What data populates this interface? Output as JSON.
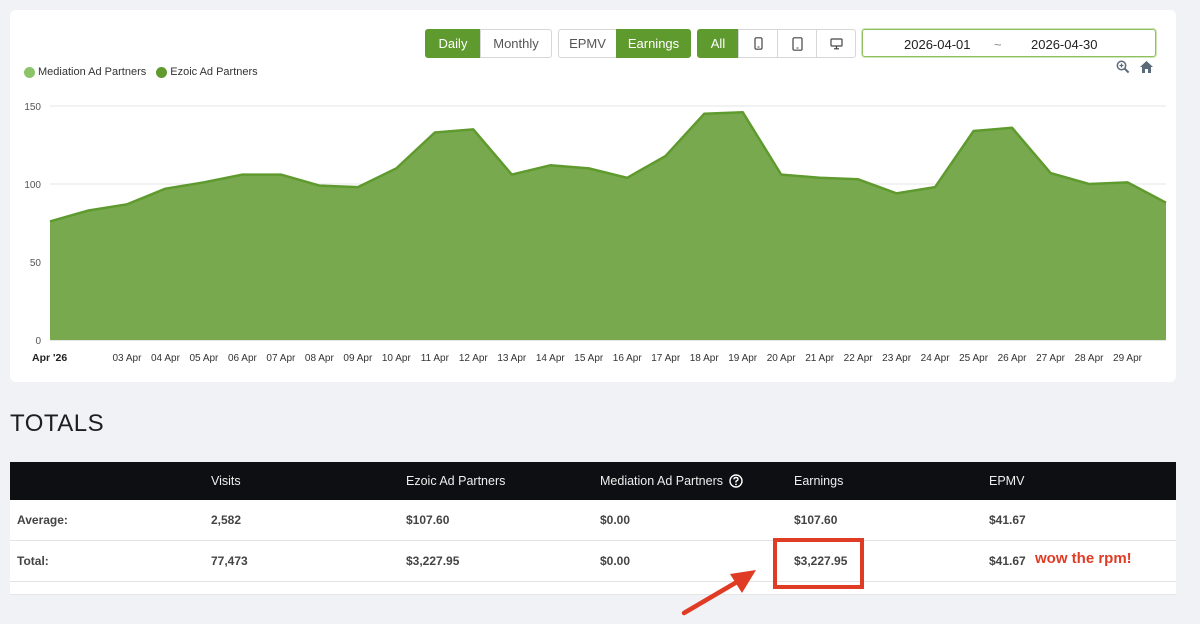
{
  "toolbar": {
    "period": [
      "Daily",
      "Monthly"
    ],
    "period_active": "Daily",
    "metric": [
      "EPMV",
      "Earnings"
    ],
    "metric_active": "Earnings",
    "device_all_label": "All",
    "device_icons": [
      "phone-icon",
      "tablet-icon",
      "desktop-icon"
    ],
    "date_start": "2026-04-01",
    "date_separator": "~",
    "date_end": "2026-04-30",
    "zoom_icon": "zoom-in-icon",
    "home_icon": "home-icon"
  },
  "legend": [
    {
      "name": "Mediation Ad Partners",
      "color": "#8cc46a"
    },
    {
      "name": "Ezoic Ad Partners",
      "color": "#5f9a2f"
    }
  ],
  "chart_data": {
    "type": "area",
    "x": [
      "2026-04-01",
      "2026-04-02",
      "2026-04-03",
      "2026-04-04",
      "2026-04-05",
      "2026-04-06",
      "2026-04-07",
      "2026-04-08",
      "2026-04-09",
      "2026-04-10",
      "2026-04-11",
      "2026-04-12",
      "2026-04-13",
      "2026-04-14",
      "2026-04-15",
      "2026-04-16",
      "2026-04-17",
      "2026-04-18",
      "2026-04-19",
      "2026-04-20",
      "2026-04-21",
      "2026-04-22",
      "2026-04-23",
      "2026-04-24",
      "2026-04-25",
      "2026-04-26",
      "2026-04-27",
      "2026-04-28",
      "2026-04-29",
      "2026-04-30"
    ],
    "x_tick_labels": [
      "Apr '26",
      "",
      "03 Apr",
      "04 Apr",
      "05 Apr",
      "06 Apr",
      "07 Apr",
      "08 Apr",
      "09 Apr",
      "10 Apr",
      "11 Apr",
      "12 Apr",
      "13 Apr",
      "14 Apr",
      "15 Apr",
      "16 Apr",
      "17 Apr",
      "18 Apr",
      "19 Apr",
      "20 Apr",
      "21 Apr",
      "22 Apr",
      "23 Apr",
      "24 Apr",
      "25 Apr",
      "26 Apr",
      "27 Apr",
      "28 Apr",
      "29 Apr",
      ""
    ],
    "series": [
      {
        "name": "Mediation Ad Partners",
        "values": [
          0,
          0,
          0,
          0,
          0,
          0,
          0,
          0,
          0,
          0,
          0,
          0,
          0,
          0,
          0,
          0,
          0,
          0,
          0,
          0,
          0,
          0,
          0,
          0,
          0,
          0,
          0,
          0,
          0,
          0
        ]
      },
      {
        "name": "Ezoic Ad Partners",
        "values": [
          76,
          83,
          87,
          97,
          101,
          106,
          106,
          99,
          98,
          110,
          133,
          135,
          106,
          112,
          110,
          104,
          118,
          145,
          146,
          106,
          104,
          103,
          94,
          98,
          134,
          136,
          107,
          100,
          101,
          88
        ]
      }
    ],
    "y_ticks": [
      0,
      50,
      100,
      150
    ],
    "ylim": [
      0,
      150
    ],
    "grid": true,
    "legend_position": "top-left",
    "fill_color": "#79a94f",
    "line_color": "#5f9a2f"
  },
  "totals": {
    "title": "TOTALS",
    "columns": [
      "",
      "Visits",
      "Ezoic Ad Partners",
      "Mediation Ad Partners",
      "Earnings",
      "EPMV"
    ],
    "help_icon": "question-circle-icon",
    "rows": [
      {
        "label": "Average:",
        "cells": [
          "2,582",
          "$107.60",
          "$0.00",
          "$107.60",
          "$41.67"
        ]
      },
      {
        "label": "Total:",
        "cells": [
          "77,473",
          "$3,227.95",
          "$0.00",
          "$3,227.95",
          "$41.67"
        ]
      }
    ]
  },
  "annotation": {
    "text": "wow the rpm!",
    "color": "#e03b24"
  }
}
